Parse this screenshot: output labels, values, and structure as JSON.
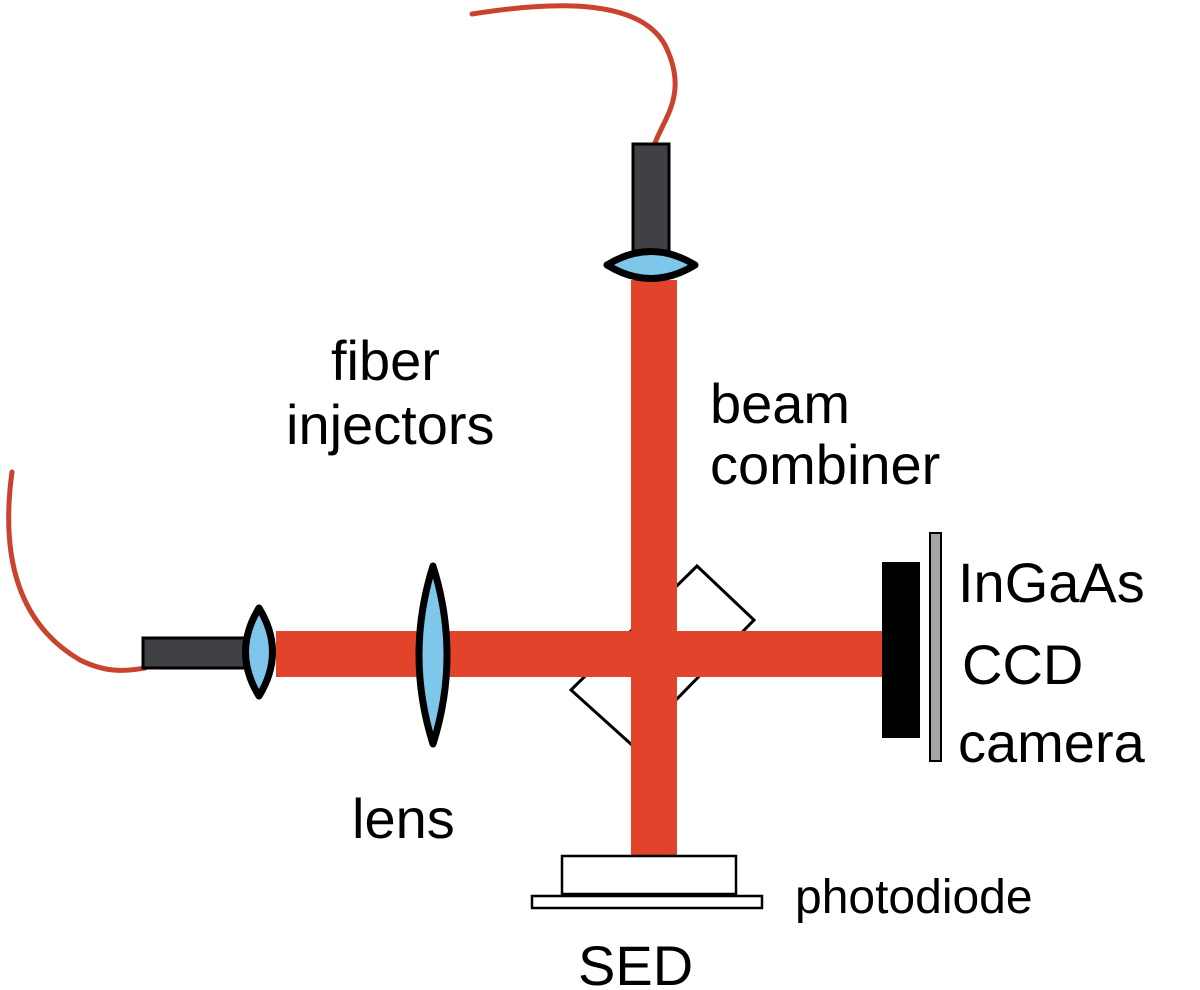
{
  "colors": {
    "beam": "#e2432b",
    "fiber": "#c9432e",
    "injector_body": "#3f4145",
    "lens_fill": "#7ec6ea",
    "detector": "#000000",
    "camera_window": "#a5a5a5",
    "outline": "#000000",
    "background": "#ffffff"
  },
  "labels": {
    "fiber_injectors": [
      "fiber",
      "injectors"
    ],
    "beam_combiner": [
      "beam",
      "combiner"
    ],
    "camera": [
      "InGaAs",
      "CCD",
      "camera"
    ],
    "lens": "lens",
    "photodiode": "photodiode",
    "sed": "SED"
  },
  "icons": {
    "fiber": "fiber-cable-icon",
    "injector": "fiber-injector-icon",
    "lens": "biconvex-lens-icon",
    "beam_combiner": "cube-beam-splitter-icon",
    "camera": "ccd-camera-icon",
    "photodiode": "photodiode-icon"
  }
}
